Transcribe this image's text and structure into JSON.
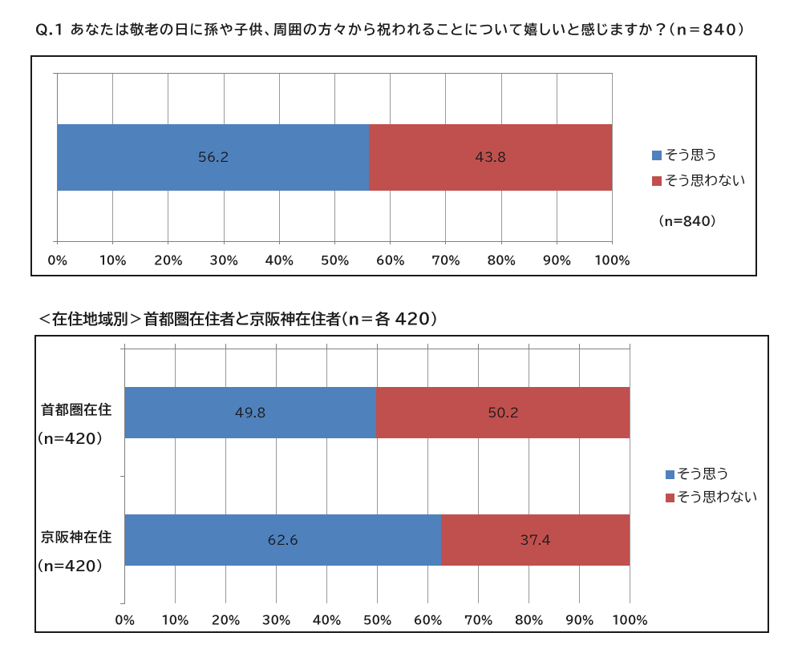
{
  "page": {
    "background": "#ffffff",
    "question_title": "Q.1 あなたは敬老の日に孫や子供、周囲の方々から祝われることについて嬉しいと感じますか？（n＝840）",
    "section_title": "＜在住地域別＞首都圏在住者と京阪神在住者（n＝各 420）"
  },
  "colors": {
    "agree": "#4f81bd",
    "disagree": "#c0504d",
    "gridline": "#999999",
    "axis_line": "#808080",
    "frame_border": "#1a1a1a",
    "text": "#1a1a1a"
  },
  "chart_data": [
    {
      "type": "bar",
      "orientation": "horizontal",
      "stacked": true,
      "title": "Q.1 あなたは敬老の日に孫や子供、周囲の方々から祝われることについて嬉しいと感じますか？（n＝840）",
      "categories": [
        {
          "label": "",
          "note": ""
        }
      ],
      "series": [
        {
          "name": "そう思う",
          "color": "#4f81bd",
          "values": [
            56.2
          ]
        },
        {
          "name": "そう思わない",
          "color": "#c0504d",
          "values": [
            43.8
          ]
        }
      ],
      "data_labels": [
        [
          "56.2",
          "43.8"
        ]
      ],
      "xlim": [
        0,
        100
      ],
      "x_tick_labels": [
        "0%",
        "10%",
        "20%",
        "30%",
        "40%",
        "50%",
        "60%",
        "70%",
        "80%",
        "90%",
        "100%"
      ],
      "grid": true,
      "legend": {
        "position": "right",
        "entries": [
          {
            "label": "そう思う",
            "color": "#4f81bd"
          },
          {
            "label": "そう思わない",
            "color": "#c0504d"
          }
        ],
        "note": "（n=840）"
      }
    },
    {
      "type": "bar",
      "orientation": "horizontal",
      "stacked": true,
      "title": "＜在住地域別＞首都圏在住者と京阪神在住者（n＝各 420）",
      "categories": [
        {
          "label": "首都圏在住",
          "note": "（n=420）"
        },
        {
          "label": "京阪神在住",
          "note": "（n=420）"
        }
      ],
      "series": [
        {
          "name": "そう思う",
          "color": "#4f81bd",
          "values": [
            49.8,
            62.6
          ]
        },
        {
          "name": "そう思わない",
          "color": "#c0504d",
          "values": [
            50.2,
            37.4
          ]
        }
      ],
      "data_labels": [
        [
          "49.8",
          "50.2"
        ],
        [
          "62.6",
          "37.4"
        ]
      ],
      "xlim": [
        0,
        100
      ],
      "x_tick_labels": [
        "0%",
        "10%",
        "20%",
        "30%",
        "40%",
        "50%",
        "60%",
        "70%",
        "80%",
        "90%",
        "100%"
      ],
      "grid": true,
      "legend": {
        "position": "right",
        "entries": [
          {
            "label": "そう思う",
            "color": "#4f81bd"
          },
          {
            "label": "そう思わない",
            "color": "#c0504d"
          }
        ],
        "note": ""
      }
    }
  ]
}
